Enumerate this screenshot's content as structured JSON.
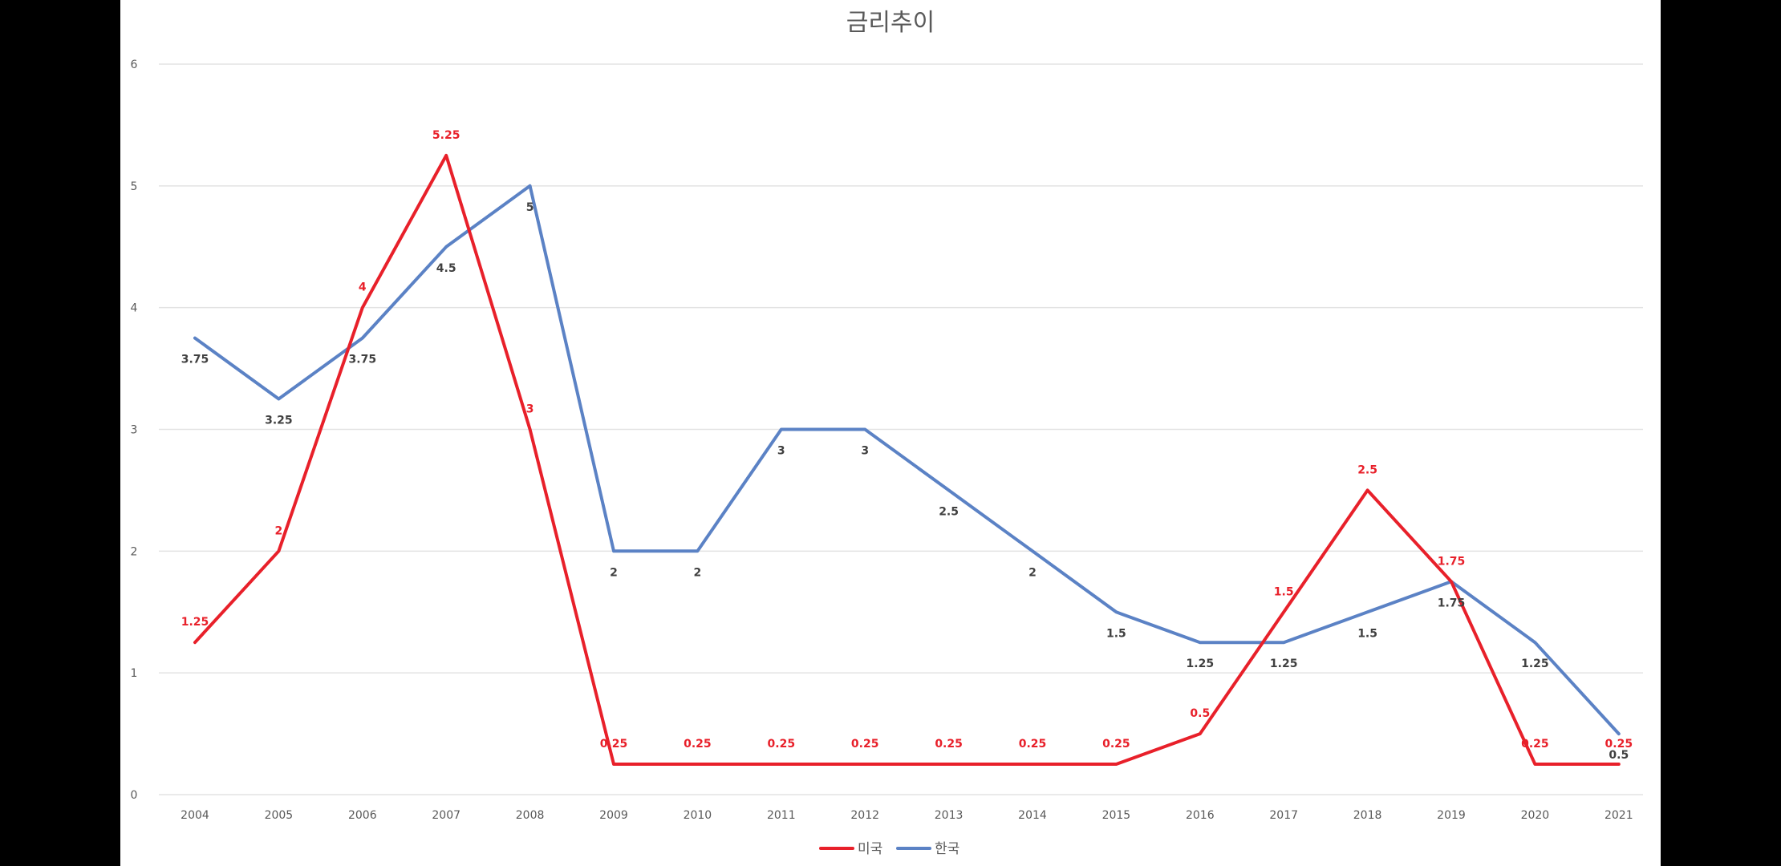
{
  "chart_data": {
    "type": "line",
    "title": "금리추이",
    "xlabel": "",
    "ylabel": "",
    "ylim": [
      0,
      6
    ],
    "yticks": [
      "0",
      "1",
      "2",
      "3",
      "4",
      "5",
      "6"
    ],
    "grid": true,
    "legend_position": "bottom",
    "categories": [
      "2004",
      "2005",
      "2006",
      "2007",
      "2008",
      "2009",
      "2010",
      "2011",
      "2012",
      "2013",
      "2014",
      "2015",
      "2016",
      "2017",
      "2018",
      "2019",
      "2020",
      "2021"
    ],
    "series": [
      {
        "name": "미국",
        "color": "#e8202a",
        "values": [
          1.25,
          2,
          4,
          5.25,
          3,
          0.25,
          0.25,
          0.25,
          0.25,
          0.25,
          0.25,
          0.25,
          0.5,
          1.5,
          2.5,
          1.75,
          0.25,
          0.25
        ],
        "labels": [
          "1.25",
          "2",
          "4",
          "5.25",
          "3",
          "0.25",
          "0.25",
          "0.25",
          "0.25",
          "0.25",
          "0.25",
          "0.25",
          "0.5",
          "1.5",
          "2.5",
          "1.75",
          "0.25",
          "0.25"
        ]
      },
      {
        "name": "한국",
        "color": "#5b82c5",
        "values": [
          3.75,
          3.25,
          3.75,
          4.5,
          5,
          2,
          2,
          3,
          3,
          2.5,
          2,
          1.5,
          1.25,
          1.25,
          1.5,
          1.75,
          1.25,
          0.5
        ],
        "labels": [
          "3.75",
          "3.25",
          "3.75",
          "4.5",
          "5",
          "2",
          "2",
          "3",
          "3",
          "2.5",
          "2",
          "1.5",
          "1.25",
          "1.25",
          "1.5",
          "1.75",
          "1.25",
          "0.5"
        ]
      }
    ]
  }
}
